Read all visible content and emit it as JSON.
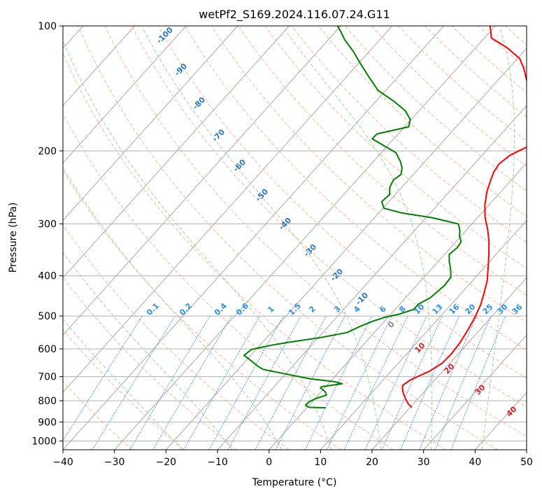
{
  "chart_data": {
    "type": "line",
    "chart_kind": "Skew-T log-P diagram",
    "title": "wetPf2_S169.2024.116.07.24.G11",
    "xlabel": "Temperature (°C)",
    "ylabel": "Pressure (hPa)",
    "xlim": [
      -40,
      50
    ],
    "ylim": [
      1050,
      100
    ],
    "yscale": "log",
    "grid": true,
    "x_ticks": [
      -40,
      -30,
      -20,
      -10,
      0,
      10,
      20,
      30,
      40,
      50
    ],
    "x_tick_labels": [
      "−40",
      "−30",
      "−20",
      "−10",
      "0",
      "10",
      "20",
      "30",
      "40",
      "50"
    ],
    "y_ticks": [
      1000,
      900,
      800,
      700,
      600,
      500,
      400,
      300,
      200,
      100
    ],
    "y_tick_labels": [
      "1000",
      "900",
      "800",
      "700",
      "600",
      "500",
      "400",
      "300",
      "200",
      "100"
    ],
    "isotherm_labels": [
      "-100",
      "-90",
      "-80",
      "-70",
      "-60",
      "-50",
      "-40",
      "-30",
      "-20",
      "-10"
    ],
    "mixing_ratio_labels": [
      "0.1",
      "0.2",
      "0.4",
      "0.6",
      "1",
      "1.5",
      "2",
      "3",
      "4",
      "6",
      "8",
      "10",
      "13",
      "16",
      "20",
      "25",
      "30",
      "36"
    ],
    "moist_adiabat_labels": [
      "0",
      "10",
      "20",
      "30",
      "40"
    ],
    "series": [
      {
        "color": "#ff0000",
        "points": [
          [
            20.3,
            830
          ],
          [
            19.1,
            815
          ],
          [
            17.5,
            790
          ],
          [
            15.8,
            760
          ],
          [
            14.7,
            735
          ],
          [
            15.3,
            712
          ],
          [
            17.4,
            680
          ],
          [
            18.5,
            650
          ],
          [
            18.7,
            620
          ],
          [
            18.4,
            580
          ],
          [
            17.7,
            540
          ],
          [
            16.9,
            505
          ],
          [
            15.8,
            470
          ],
          [
            14.4,
            440
          ],
          [
            12.8,
            410
          ],
          [
            10.6,
            380
          ],
          [
            8.6,
            355
          ],
          [
            6.3,
            330
          ],
          [
            4.1,
            310
          ],
          [
            1.5,
            290
          ],
          [
            -0.8,
            270
          ],
          [
            -2.8,
            250
          ],
          [
            -4.0,
            235
          ],
          [
            -4.8,
            225
          ],
          [
            -5.2,
            215
          ],
          [
            -4.6,
            205
          ],
          [
            -2.6,
            195
          ],
          [
            -0.4,
            187
          ],
          [
            -0.7,
            175
          ],
          [
            -3.3,
            165
          ],
          [
            -7.0,
            155
          ],
          [
            -11.3,
            145
          ],
          [
            -14.5,
            135
          ],
          [
            -16.9,
            127
          ],
          [
            -19.5,
            120
          ],
          [
            -23.8,
            113
          ],
          [
            -28.6,
            107
          ],
          [
            -31.0,
            100
          ]
        ]
      },
      {
        "color": "#008000",
        "points": [
          [
            3.7,
            832
          ],
          [
            0.4,
            830
          ],
          [
            -0.7,
            820
          ],
          [
            -0.6,
            805
          ],
          [
            0.2,
            790
          ],
          [
            1.6,
            775
          ],
          [
            0.7,
            760
          ],
          [
            -0.8,
            745
          ],
          [
            -0.8,
            740
          ],
          [
            2.7,
            728
          ],
          [
            0.9,
            720
          ],
          [
            -4.5,
            708
          ],
          [
            -10.5,
            688
          ],
          [
            -15.2,
            672
          ],
          [
            -16.8,
            660
          ],
          [
            -19.1,
            640
          ],
          [
            -21.3,
            622
          ],
          [
            -20.9,
            602
          ],
          [
            -17.8,
            588
          ],
          [
            -14.8,
            578
          ],
          [
            -9.4,
            563
          ],
          [
            -5.3,
            548
          ],
          [
            -3.9,
            530
          ],
          [
            -2.3,
            515
          ],
          [
            -0.5,
            503
          ],
          [
            1.6,
            495
          ],
          [
            3.6,
            482
          ],
          [
            3.6,
            468
          ],
          [
            4.8,
            452
          ],
          [
            5.1,
            437
          ],
          [
            5.4,
            421
          ],
          [
            5.2,
            403
          ],
          [
            3.7,
            385
          ],
          [
            2.2,
            370
          ],
          [
            0.9,
            355
          ],
          [
            1.3,
            342
          ],
          [
            1.0,
            331
          ],
          [
            -0.4,
            320
          ],
          [
            -1.1,
            312
          ],
          [
            -2.6,
            300
          ],
          [
            -8.7,
            290
          ],
          [
            -15.7,
            282
          ],
          [
            -19.8,
            275
          ],
          [
            -21.4,
            265
          ],
          [
            -21.1,
            255
          ],
          [
            -22.3,
            245
          ],
          [
            -22.9,
            235
          ],
          [
            -22.4,
            228
          ],
          [
            -23.3,
            220
          ],
          [
            -24.8,
            212
          ],
          [
            -27.2,
            202
          ],
          [
            -30.9,
            194
          ],
          [
            -34.2,
            187
          ],
          [
            -34.1,
            182
          ],
          [
            -29.2,
            175
          ],
          [
            -30.2,
            168
          ],
          [
            -32.7,
            160
          ],
          [
            -36.5,
            152
          ],
          [
            -41.5,
            143
          ],
          [
            -45.5,
            133
          ],
          [
            -49.7,
            123
          ],
          [
            -53.2,
            115
          ],
          [
            -56.8,
            108
          ],
          [
            -59.1,
            103
          ],
          [
            -60.6,
            100
          ]
        ]
      }
    ]
  }
}
